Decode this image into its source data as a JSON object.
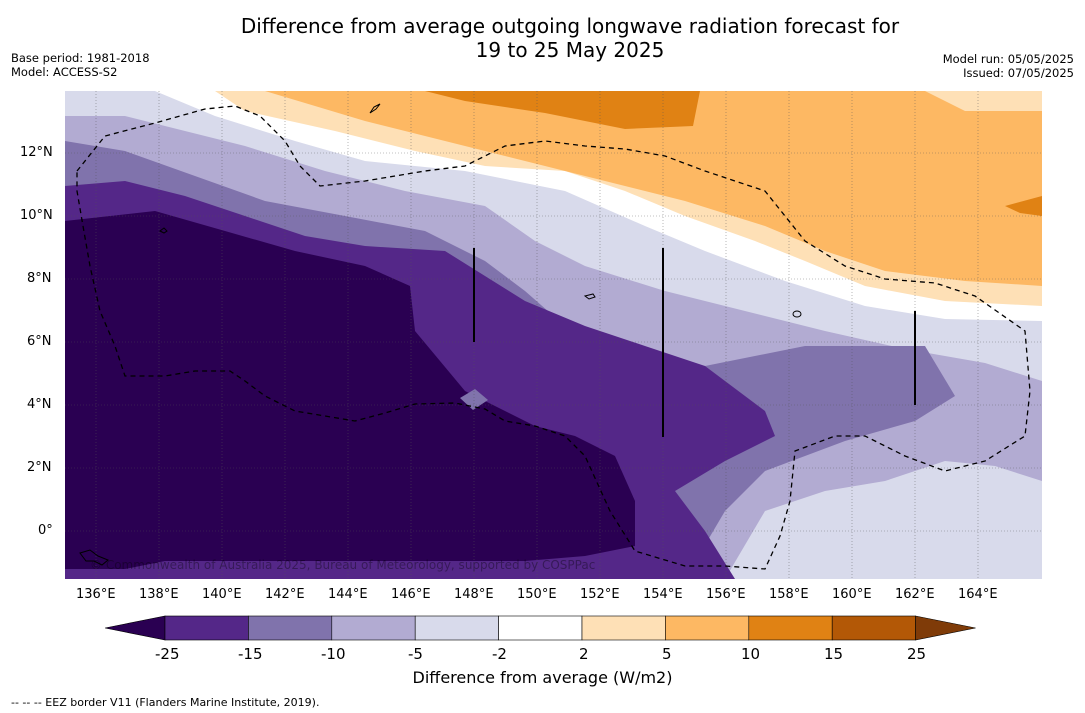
{
  "title_line1": "Difference from average outgoing longwave radiation forecast for",
  "title_line2": "19 to 25 May 2025",
  "base_period": "Base period: 1981-2018",
  "model": "Model: ACCESS-S2",
  "model_run": "Model run: 05/05/2025",
  "issued": "Issued: 07/05/2025",
  "copyright": "© Commonwealth of Australia 2025, Bureau of Meteorology, supported by COSPPac",
  "map": {
    "x_ticks": [
      "136°E",
      "138°E",
      "140°E",
      "142°E",
      "144°E",
      "146°E",
      "148°E",
      "150°E",
      "152°E",
      "154°E",
      "156°E",
      "158°E",
      "160°E",
      "162°E",
      "164°E"
    ],
    "y_ticks": [
      "12°N",
      "10°N",
      "8°N",
      "6°N",
      "4°N",
      "2°N",
      "0°"
    ]
  },
  "colorbar": {
    "label": "Difference from average (W/m2)",
    "ticks": [
      "-25",
      "-15",
      "-10",
      "-5",
      "-2",
      "2",
      "5",
      "10",
      "15",
      "25"
    ],
    "colors": [
      "#2a0052",
      "#542788",
      "#8073ac",
      "#b2abd2",
      "#d8daeb",
      "#ffffff",
      "#fee0b6",
      "#fdb863",
      "#e08214",
      "#b35806",
      "#7f3b08"
    ]
  },
  "footnote": "--  --  -- EEZ border V11 (Flanders Marine Institute, 2019)."
}
